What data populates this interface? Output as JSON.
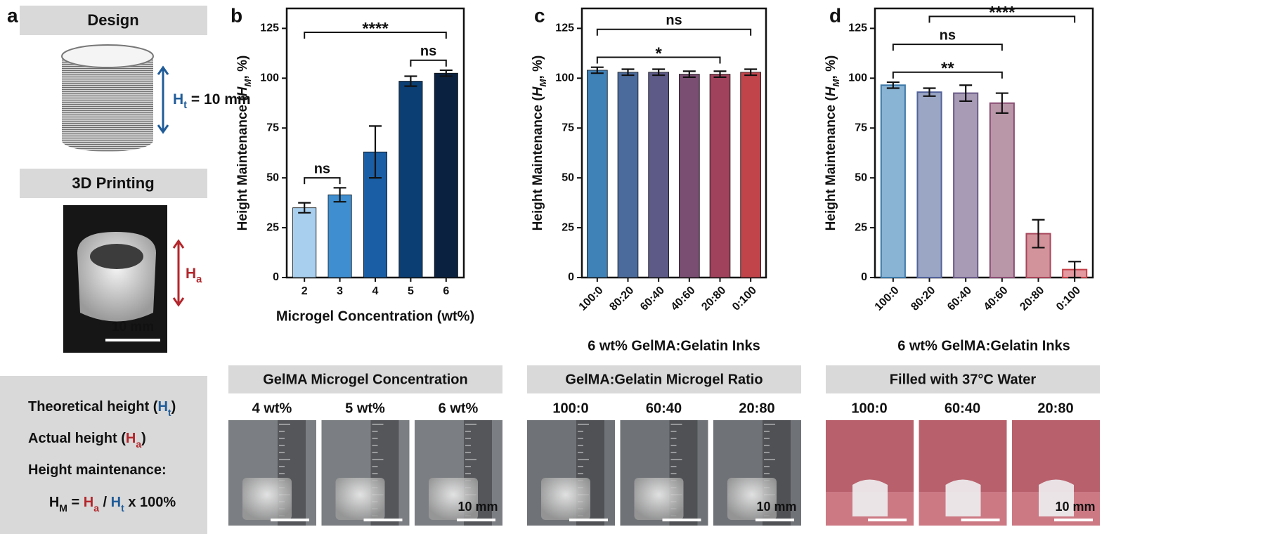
{
  "panel_labels": [
    "a",
    "b",
    "c",
    "d"
  ],
  "panel_a": {
    "design_title": "Design",
    "design_label": [
      {
        "text": "H",
        "sub": "t",
        "color": "#1f5c99"
      },
      {
        "text": " = 10 mm"
      }
    ],
    "printing_title": "3D Printing",
    "printing_label": [
      {
        "text": "H",
        "sub": "a",
        "color": "#b3262b"
      }
    ],
    "scale_bar": "10 mm",
    "definitions": [
      [
        {
          "text": "Theoretical height ("
        },
        {
          "text": "H",
          "sub": "t",
          "color": "#1f5c99"
        },
        {
          "text": ")"
        }
      ],
      [
        {
          "text": "Actual height ("
        },
        {
          "text": "H",
          "sub": "a",
          "color": "#b3262b"
        },
        {
          "text": ")"
        }
      ],
      [
        {
          "text": "Height maintenance:"
        }
      ],
      [
        {
          "text": "H",
          "sub": "M"
        },
        {
          "text": " = "
        },
        {
          "text": "H",
          "sub": "a",
          "color": "#b3262b"
        },
        {
          "text": " / "
        },
        {
          "text": "H",
          "sub": "t",
          "color": "#1f5c99"
        },
        {
          "text": " x 100%"
        }
      ]
    ]
  },
  "chart_data": [
    {
      "type": "bar",
      "xlabel": "Microgel Concentration (wt%)",
      "ylabel": [
        {
          "text": "Height Maintenance ("
        },
        {
          "text": "H",
          "sub": "M",
          "italic": true
        },
        {
          "text": ", %)"
        }
      ],
      "categories": [
        "2",
        "3",
        "4",
        "5",
        "6"
      ],
      "values": [
        35,
        41.5,
        63,
        98.5,
        102.5
      ],
      "errors": [
        2.5,
        3.5,
        13,
        2.5,
        1.5
      ],
      "colors": [
        "#a9cfee",
        "#3f8fd0",
        "#1a5fa5",
        "#0b3e72",
        "#0a2240"
      ],
      "ylim": [
        0,
        135
      ],
      "yticks": [
        0,
        25,
        50,
        75,
        100,
        125
      ],
      "rotated_labels": false,
      "annotations": [
        {
          "text": "ns",
          "between": [
            "2",
            "3"
          ]
        },
        {
          "text": "ns",
          "between": [
            "5",
            "6"
          ]
        },
        {
          "text": "****",
          "between": [
            "2",
            "6"
          ]
        }
      ]
    },
    {
      "type": "bar",
      "xlabel": "6 wt% GelMA:Gelatin Inks",
      "ylabel": [
        {
          "text": "Height Maintenance ("
        },
        {
          "text": "H",
          "sub": "M",
          "italic": true
        },
        {
          "text": ", %)"
        }
      ],
      "categories": [
        "100:0",
        "80:20",
        "60:40",
        "40:60",
        "20:80",
        "0:100"
      ],
      "values": [
        104,
        103,
        103,
        102,
        102,
        103
      ],
      "errors": [
        1.5,
        1.5,
        1.5,
        1.5,
        1.5,
        1.5
      ],
      "colors": [
        "#3f82b8",
        "#4b6b9c",
        "#5d5a88",
        "#7a4d72",
        "#a1425c",
        "#c2444b"
      ],
      "ylim": [
        0,
        135
      ],
      "yticks": [
        0,
        25,
        50,
        75,
        100,
        125
      ],
      "rotated_labels": true,
      "annotations": [
        {
          "text": "*",
          "between": [
            "100:0",
            "20:80"
          ]
        },
        {
          "text": "ns",
          "between": [
            "100:0",
            "0:100"
          ]
        }
      ]
    },
    {
      "type": "bar",
      "xlabel": "6 wt% GelMA:Gelatin Inks",
      "ylabel": [
        {
          "text": "Height Maintenance ("
        },
        {
          "text": "H",
          "sub": "M",
          "italic": true
        },
        {
          "text": ", %)"
        }
      ],
      "categories": [
        "100:0",
        "80:20",
        "60:40",
        "40:60",
        "20:80",
        "0:100"
      ],
      "values": [
        96.5,
        93,
        92.5,
        87.5,
        22,
        4
      ],
      "errors": [
        1.5,
        2,
        4,
        5,
        7,
        4
      ],
      "colors": [
        "#8ab4d4",
        "#9aa6c4",
        "#a79bb6",
        "#b996a8",
        "#d2939b",
        "#e39aa0"
      ],
      "edge_colors": [
        "#3d79a8",
        "#52629a",
        "#6a5a88",
        "#8a4d74",
        "#a8465c",
        "#c44048"
      ],
      "ylim": [
        0,
        135
      ],
      "yticks": [
        0,
        25,
        50,
        75,
        100,
        125
      ],
      "rotated_labels": true,
      "annotations": [
        {
          "text": "**",
          "between": [
            "100:0",
            "40:60"
          ]
        },
        {
          "text": "ns",
          "between": [
            "100:0",
            "40:60"
          ]
        },
        {
          "text": "****",
          "between": [
            "80:20",
            "0:100"
          ]
        }
      ]
    }
  ],
  "photo_groups": [
    {
      "title": "GelMA Microgel Concentration",
      "labels": [
        "4 wt%",
        "5 wt%",
        "6 wt%"
      ],
      "scale_bar": "10 mm",
      "background": "#7b7e82"
    },
    {
      "title": "GelMA:Gelatin Microgel Ratio",
      "labels": [
        "100:0",
        "60:40",
        "20:80"
      ],
      "scale_bar": "10 mm",
      "background": "#6f7276"
    },
    {
      "title": "Filled with 37°C Water",
      "labels": [
        "100:0",
        "60:40",
        "20:80"
      ],
      "scale_bar": "10 mm",
      "background": "#b8606c"
    }
  ]
}
